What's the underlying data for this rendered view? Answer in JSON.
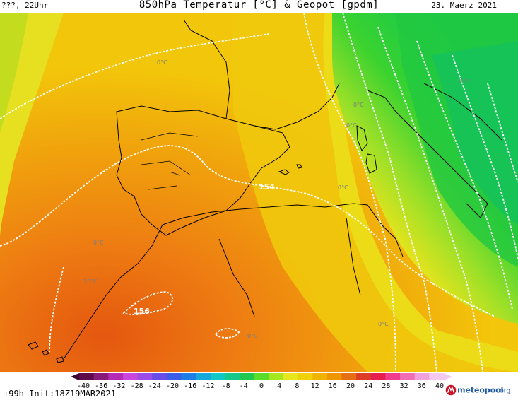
{
  "header": {
    "left_text": "???, 22Uhr",
    "title": "850hPa Temperatur [°C] & Geopot [gpdm]",
    "date": "23. Maerz 2021"
  },
  "map": {
    "geopot_labels": [
      "154",
      "156"
    ],
    "isotherm_labels": [
      "0°C",
      "0°C",
      "0°C",
      "0°C",
      "0°C",
      "10°C",
      "0°C",
      "0°C",
      "0°C"
    ]
  },
  "colorbar": {
    "ticks": [
      "-40",
      "-36",
      "-32",
      "-28",
      "-24",
      "-20",
      "-16",
      "-12",
      "-8",
      "-4",
      "0",
      "4",
      "8",
      "12",
      "16",
      "20",
      "24",
      "28",
      "32",
      "36",
      "40"
    ],
    "colors": [
      "#5e0a4a",
      "#8a1a7a",
      "#b42ab4",
      "#c846dc",
      "#9b4be6",
      "#6a4ce6",
      "#3a5ce6",
      "#1e7ee6",
      "#14a8dc",
      "#10c8c8",
      "#18c88a",
      "#20c850",
      "#5adc2a",
      "#a6e61e",
      "#e6e61e",
      "#f0d20a",
      "#f0b400",
      "#f09600",
      "#e66e14",
      "#dc3c28",
      "#e61e50",
      "#f03c8c",
      "#f06eb4",
      "#f0a0dc",
      "#f5c8f0"
    ]
  },
  "footer": {
    "init": "+99h Init:18Z19MAR2021",
    "logo_text": "meteopool",
    "logo_suffix": ".org"
  }
}
